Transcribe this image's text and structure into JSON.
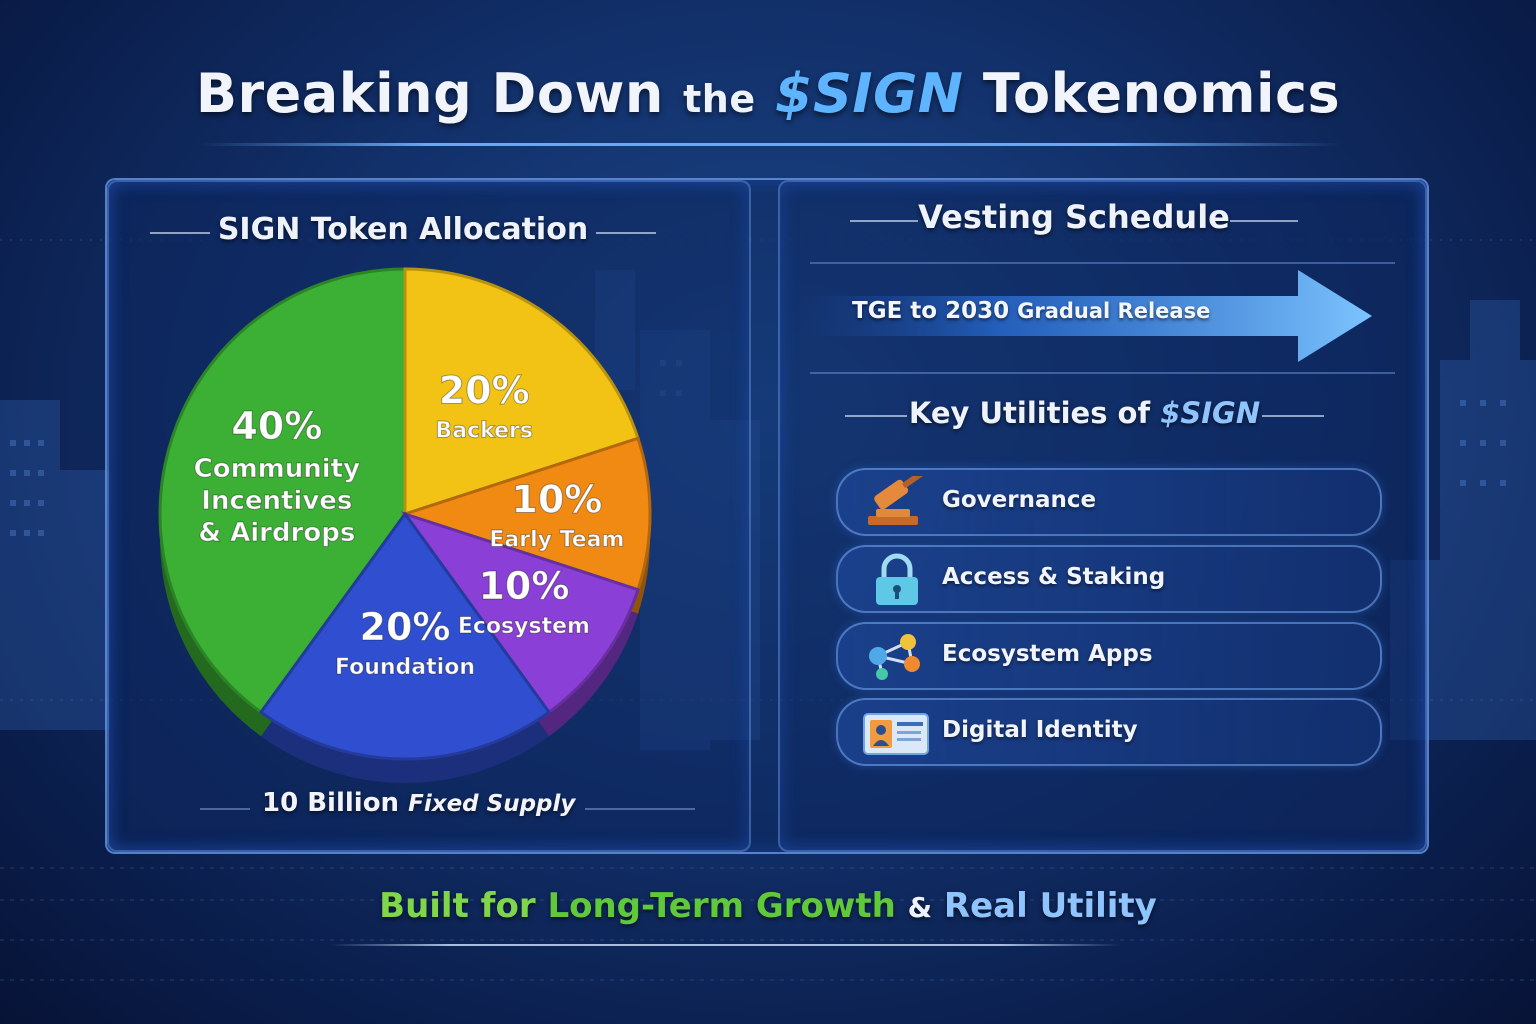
{
  "title": {
    "part1": "Breaking Down",
    "part2": "the",
    "part3": "$SIGN",
    "part4": "Tokenomics"
  },
  "allocation": {
    "heading": "SIGN Token Allocation",
    "supply_number": "10 Billion",
    "supply_text": "Fixed Supply"
  },
  "chart_data": {
    "type": "pie",
    "title": "SIGN Token Allocation",
    "slices": [
      {
        "label_pct": "40%",
        "label_lines": [
          "Community",
          "Incentives",
          "& Airdrops"
        ],
        "value": 40,
        "color": "#3bb034"
      },
      {
        "label_pct": "20%",
        "label_lines": [
          "Backers"
        ],
        "value": 20,
        "color": "#f2c314"
      },
      {
        "label_pct": "10%",
        "label_lines": [
          "Early Team"
        ],
        "value": 10,
        "color": "#f08a12"
      },
      {
        "label_pct": "10%",
        "label_lines": [
          "Ecosystem"
        ],
        "value": 10,
        "color": "#8a3fd6"
      },
      {
        "label_pct": "20%",
        "label_lines": [
          "Foundation"
        ],
        "value": 20,
        "color": "#2f4fd0"
      }
    ]
  },
  "vesting": {
    "heading": "Vesting Schedule",
    "arrow_bold": "TGE to 2030",
    "arrow_rest": "Gradual Release"
  },
  "utilities": {
    "heading_text": "Key Utilities of",
    "heading_token": "$SIGN",
    "items": [
      {
        "label": "Governance",
        "icon": "gavel-icon"
      },
      {
        "label": "Access & Staking",
        "icon": "padlock-icon"
      },
      {
        "label": "Ecosystem Apps",
        "icon": "network-nodes-icon"
      },
      {
        "label": "Digital Identity",
        "icon": "id-card-icon"
      }
    ]
  },
  "tagline": {
    "part1": "Built for",
    "part2": "Long-Term Growth",
    "part3": "&",
    "part4": "Real Utility",
    "colors": {
      "green": "#7fd64a",
      "blue": "#8fc4ff"
    }
  }
}
